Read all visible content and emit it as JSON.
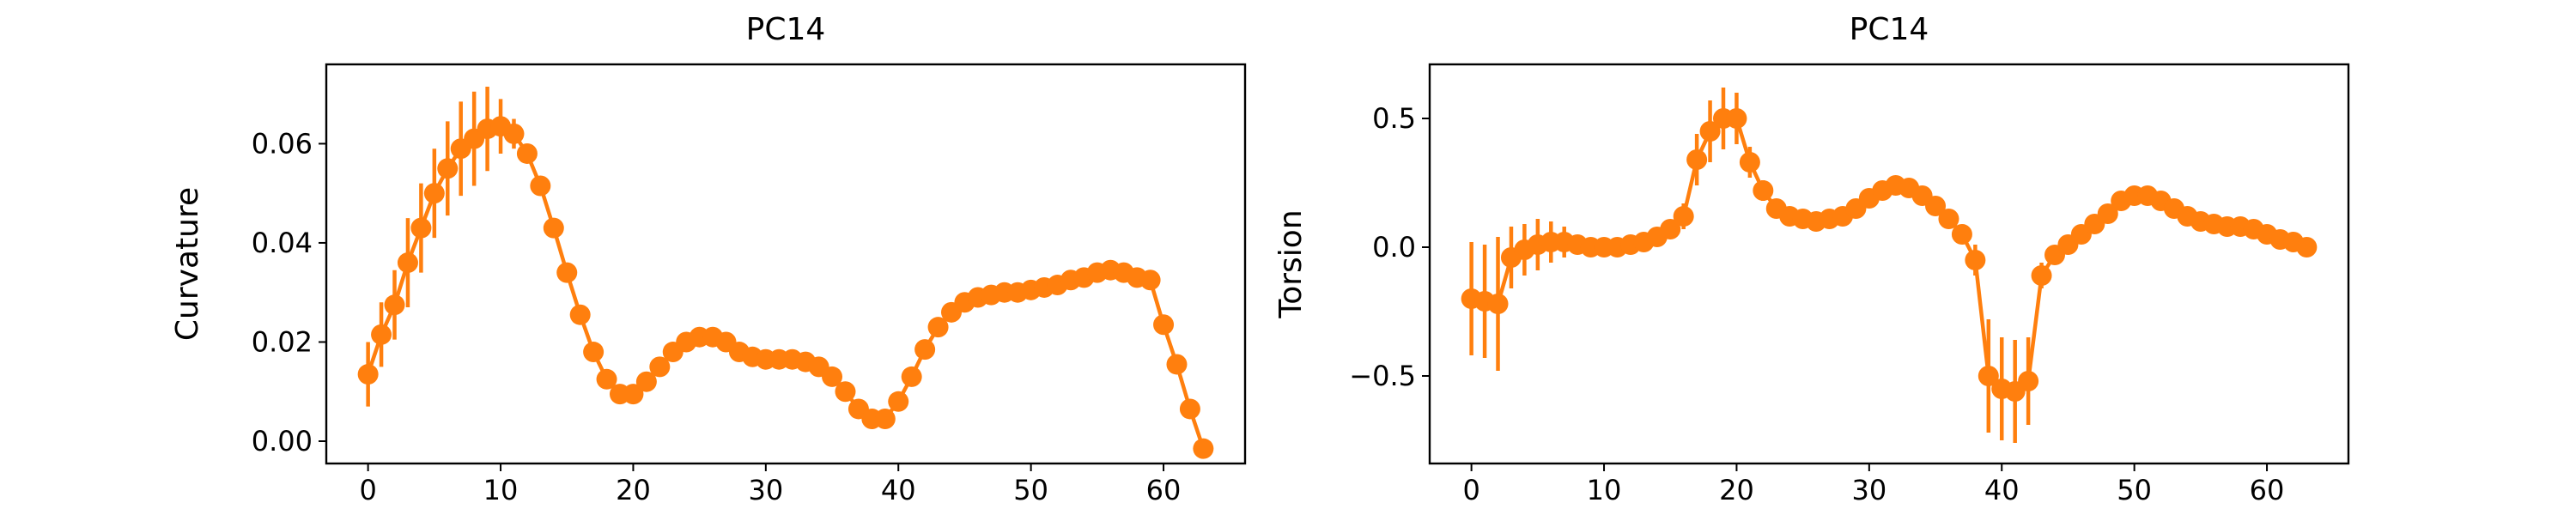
{
  "colors": {
    "series": "#ff7f0e"
  },
  "chart_data": [
    {
      "type": "line",
      "title": "PC14",
      "xlabel": "",
      "ylabel": "Curvature",
      "xlim": [
        -3.15,
        66.15
      ],
      "ylim": [
        -0.0045,
        0.076
      ],
      "xticks": [
        0,
        10,
        20,
        30,
        40,
        50,
        60
      ],
      "xtick_labels": [
        "0",
        "10",
        "20",
        "30",
        "40",
        "50",
        "60"
      ],
      "yticks": [
        0.0,
        0.02,
        0.04,
        0.06
      ],
      "ytick_labels": [
        "0.00",
        "0.02",
        "0.04",
        "0.06"
      ],
      "grid": false,
      "series": [
        {
          "x": [
            0,
            1,
            2,
            3,
            4,
            5,
            6,
            7,
            8,
            9,
            10,
            11,
            12,
            13,
            14,
            15,
            16,
            17,
            18,
            19,
            20,
            21,
            22,
            23,
            24,
            25,
            26,
            27,
            28,
            29,
            30,
            31,
            32,
            33,
            34,
            35,
            36,
            37,
            38,
            39,
            40,
            41,
            42,
            43,
            44,
            45,
            46,
            47,
            48,
            49,
            50,
            51,
            52,
            53,
            54,
            55,
            56,
            57,
            58,
            59,
            60,
            61,
            62,
            63
          ],
          "y": [
            0.0135,
            0.0215,
            0.0275,
            0.036,
            0.043,
            0.05,
            0.055,
            0.059,
            0.061,
            0.063,
            0.0635,
            0.062,
            0.058,
            0.0515,
            0.043,
            0.034,
            0.0255,
            0.018,
            0.0125,
            0.0095,
            0.0095,
            0.012,
            0.015,
            0.018,
            0.02,
            0.021,
            0.021,
            0.02,
            0.018,
            0.017,
            0.0165,
            0.0165,
            0.0165,
            0.016,
            0.015,
            0.013,
            0.01,
            0.0065,
            0.0045,
            0.0045,
            0.008,
            0.013,
            0.0185,
            0.023,
            0.026,
            0.028,
            0.029,
            0.0295,
            0.03,
            0.03,
            0.0305,
            0.031,
            0.0315,
            0.0325,
            0.033,
            0.034,
            0.0345,
            0.034,
            0.033,
            0.0325,
            0.0235,
            0.0155,
            0.0065,
            -0.0015
          ],
          "err": [
            0.0065,
            0.0065,
            0.007,
            0.009,
            0.009,
            0.009,
            0.0095,
            0.0095,
            0.0095,
            0.0085,
            0.0055,
            0.003,
            0.002,
            0.001,
            0.001,
            0.001,
            0.001,
            0.001,
            0.001,
            0.001,
            0.001,
            0.001,
            0.001,
            0.001,
            0.001,
            0.001,
            0.001,
            0.001,
            0.001,
            0.001,
            0.001,
            0.001,
            0.001,
            0.001,
            0.001,
            0.001,
            0.001,
            0.001,
            0.001,
            0.001,
            0.001,
            0.001,
            0.001,
            0.001,
            0.001,
            0.001,
            0.001,
            0.001,
            0.001,
            0.001,
            0.001,
            0.001,
            0.001,
            0.001,
            0.001,
            0.001,
            0.001,
            0.001,
            0.001,
            0.001,
            0.001,
            0.001,
            0.001,
            0.001
          ]
        }
      ]
    },
    {
      "type": "line",
      "title": "PC14",
      "xlabel": "",
      "ylabel": "Torsion",
      "xlim": [
        -3.15,
        66.15
      ],
      "ylim": [
        -0.84,
        0.71
      ],
      "xticks": [
        0,
        10,
        20,
        30,
        40,
        50,
        60
      ],
      "xtick_labels": [
        "0",
        "10",
        "20",
        "30",
        "40",
        "50",
        "60"
      ],
      "yticks": [
        -0.5,
        0.0,
        0.5
      ],
      "ytick_labels": [
        "−0.5",
        "0.0",
        "0.5"
      ],
      "grid": false,
      "series": [
        {
          "x": [
            0,
            1,
            2,
            3,
            4,
            5,
            6,
            7,
            8,
            9,
            10,
            11,
            12,
            13,
            14,
            15,
            16,
            17,
            18,
            19,
            20,
            21,
            22,
            23,
            24,
            25,
            26,
            27,
            28,
            29,
            30,
            31,
            32,
            33,
            34,
            35,
            36,
            37,
            38,
            39,
            40,
            41,
            42,
            43,
            44,
            45,
            46,
            47,
            48,
            49,
            50,
            51,
            52,
            53,
            54,
            55,
            56,
            57,
            58,
            59,
            60,
            61,
            62,
            63
          ],
          "y": [
            -0.2,
            -0.21,
            -0.22,
            -0.04,
            -0.01,
            0.01,
            0.02,
            0.02,
            0.01,
            0.0,
            0.0,
            0.0,
            0.01,
            0.02,
            0.04,
            0.07,
            0.12,
            0.34,
            0.45,
            0.5,
            0.5,
            0.33,
            0.22,
            0.15,
            0.12,
            0.11,
            0.1,
            0.11,
            0.12,
            0.15,
            0.19,
            0.22,
            0.24,
            0.23,
            0.2,
            0.16,
            0.11,
            0.05,
            -0.05,
            -0.5,
            -0.55,
            -0.56,
            -0.52,
            -0.11,
            -0.03,
            0.01,
            0.05,
            0.09,
            0.13,
            0.18,
            0.2,
            0.2,
            0.18,
            0.15,
            0.12,
            0.1,
            0.09,
            0.08,
            0.08,
            0.07,
            0.05,
            0.03,
            0.02,
            0.0
          ],
          "err": [
            0.22,
            0.22,
            0.26,
            0.12,
            0.1,
            0.1,
            0.08,
            0.06,
            0.03,
            0.02,
            0.02,
            0.02,
            0.02,
            0.02,
            0.02,
            0.03,
            0.05,
            0.1,
            0.12,
            0.12,
            0.1,
            0.06,
            0.04,
            0.03,
            0.02,
            0.02,
            0.02,
            0.02,
            0.02,
            0.02,
            0.02,
            0.02,
            0.02,
            0.02,
            0.02,
            0.02,
            0.02,
            0.03,
            0.06,
            0.22,
            0.2,
            0.2,
            0.17,
            0.05,
            0.03,
            0.02,
            0.02,
            0.02,
            0.02,
            0.02,
            0.02,
            0.02,
            0.02,
            0.02,
            0.02,
            0.02,
            0.02,
            0.02,
            0.02,
            0.02,
            0.02,
            0.02,
            0.02,
            0.02
          ]
        }
      ]
    }
  ]
}
